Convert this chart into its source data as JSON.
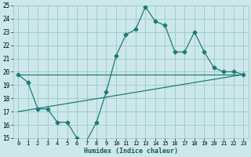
{
  "xlabel": "Humidex (Indice chaleur)",
  "xlim": [
    -0.5,
    23.5
  ],
  "ylim": [
    15,
    25
  ],
  "xticks": [
    0,
    1,
    2,
    3,
    4,
    5,
    6,
    7,
    8,
    9,
    10,
    11,
    12,
    13,
    14,
    15,
    16,
    17,
    18,
    19,
    20,
    21,
    22,
    23
  ],
  "yticks": [
    15,
    16,
    17,
    18,
    19,
    20,
    21,
    22,
    23,
    24,
    25
  ],
  "bg_color": "#cde8ea",
  "grid_color": "#9fcdd0",
  "line_color": "#1e7a78",
  "line1_x": [
    0,
    1,
    2,
    3,
    4,
    5,
    6,
    7,
    8,
    9,
    10,
    11,
    12,
    13,
    14,
    15,
    16,
    17,
    18,
    19,
    20,
    21,
    22,
    23
  ],
  "line1_y": [
    19.8,
    19.2,
    17.2,
    17.2,
    16.2,
    16.2,
    15.0,
    14.8,
    16.2,
    18.5,
    21.2,
    22.8,
    23.2,
    24.9,
    23.8,
    23.5,
    21.5,
    21.5,
    23.0,
    21.5,
    20.3,
    20.0,
    20.0,
    19.8
  ],
  "line2_x": [
    0,
    23
  ],
  "line2_y": [
    19.8,
    19.8
  ],
  "line3_x": [
    0,
    23
  ],
  "line3_y": [
    17.0,
    19.8
  ],
  "marker": "D",
  "marker_size": 2.5,
  "lw": 0.9
}
